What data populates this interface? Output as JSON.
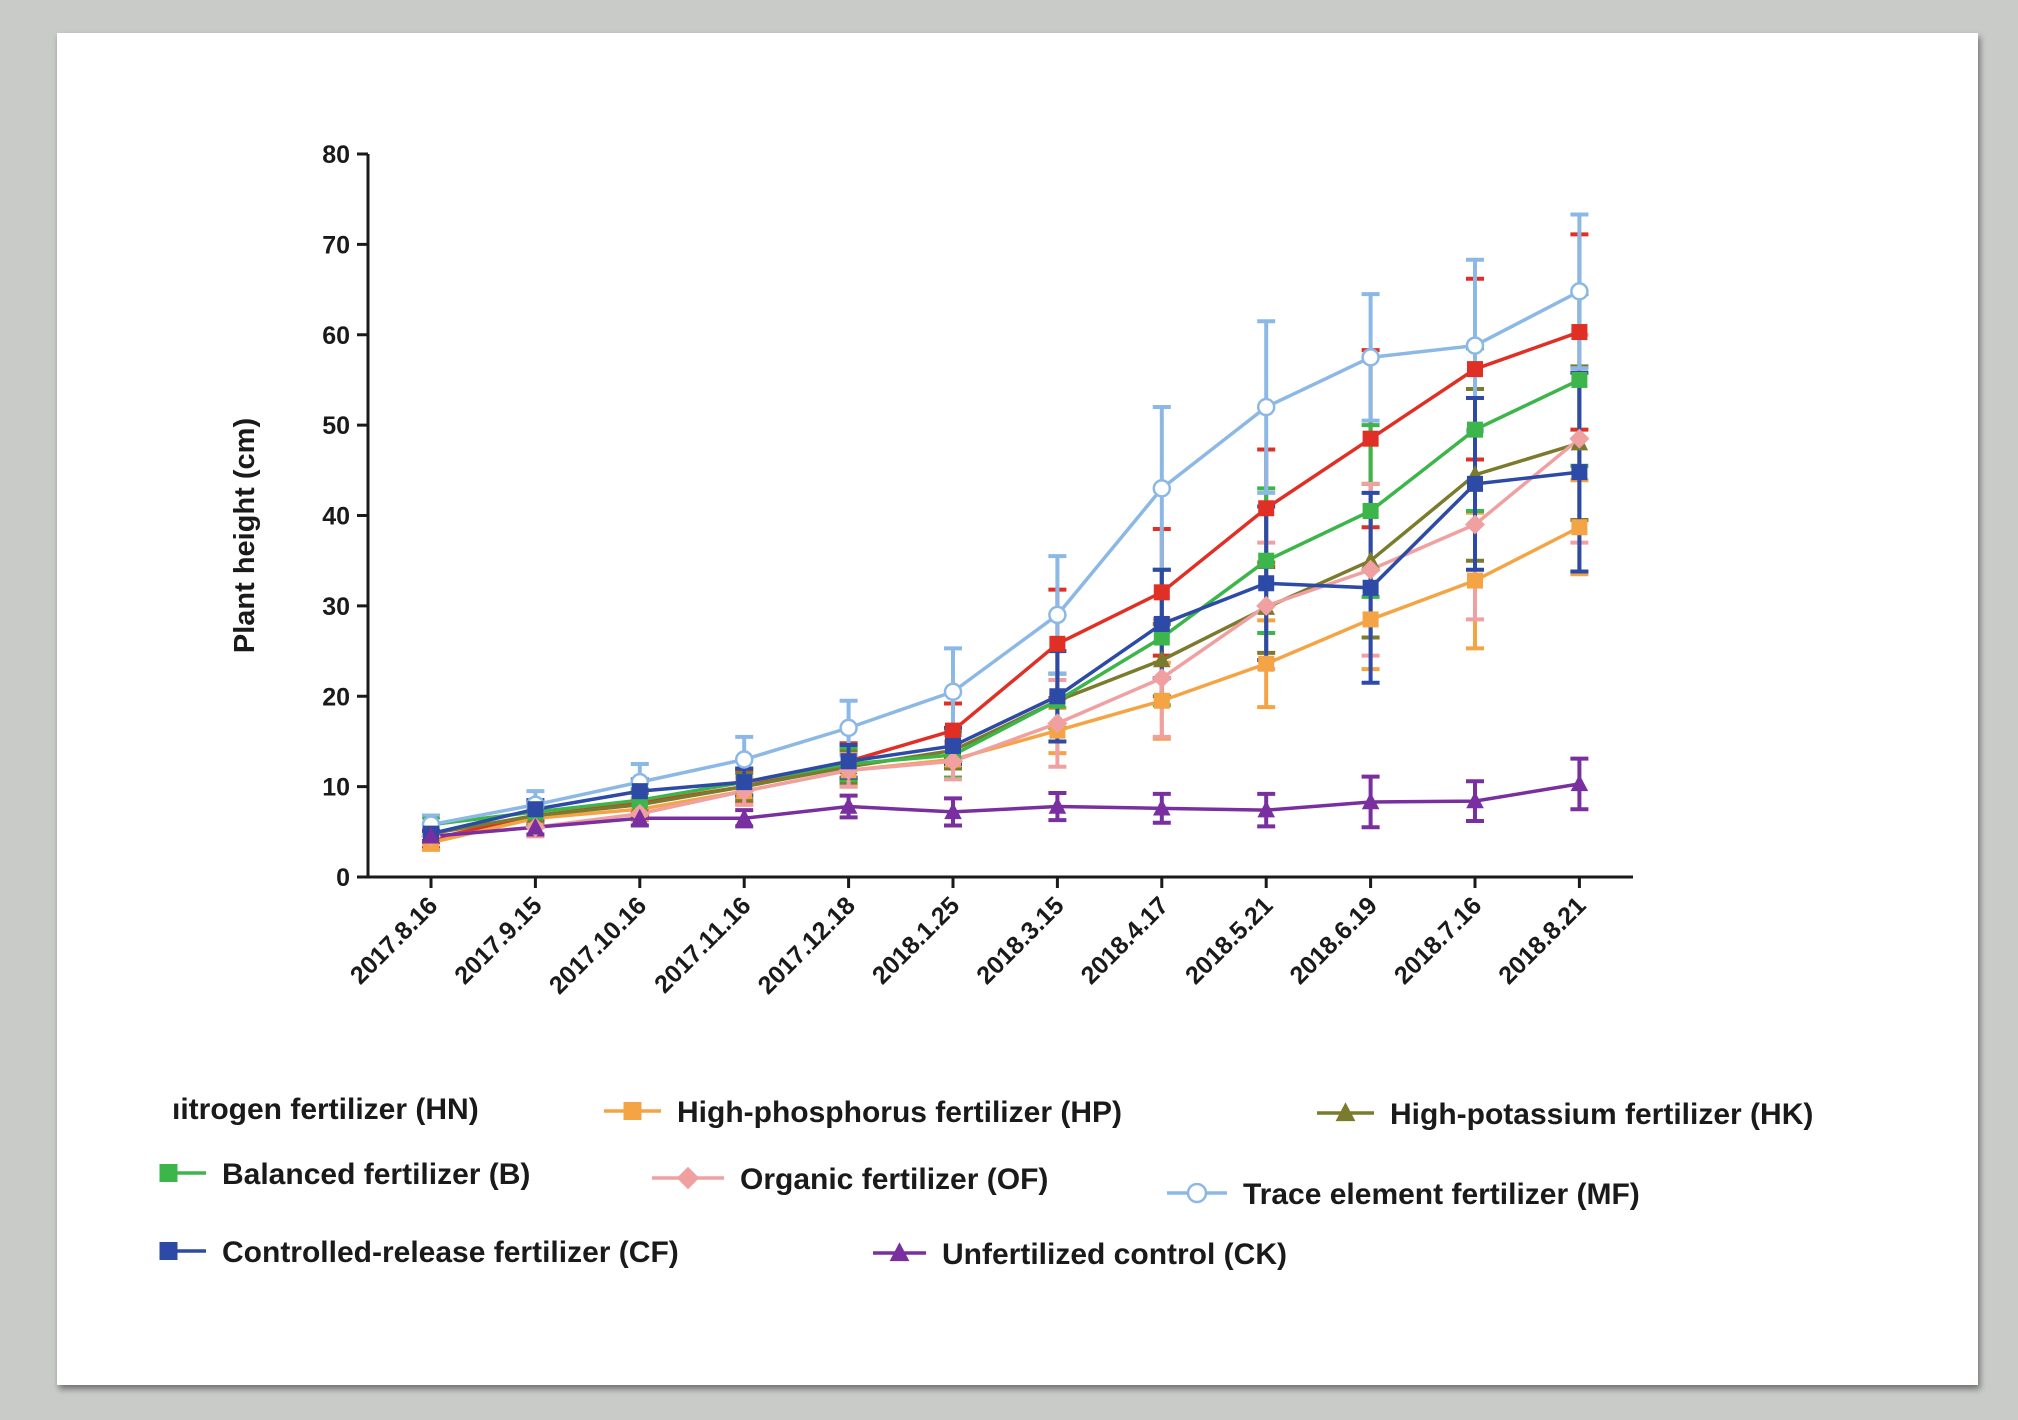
{
  "chart_data": {
    "type": "line",
    "ylabel": "Plant height (cm)",
    "xlabel": "",
    "ylim": [
      0,
      80
    ],
    "yticks": [
      0,
      10,
      20,
      30,
      40,
      50,
      60,
      70,
      80
    ],
    "categories": [
      "2017.8.16",
      "2017.9.15",
      "2017.10.16",
      "2017.11.16",
      "2017.12.18",
      "2018.1.25",
      "2018.3.15",
      "2018.4.17",
      "2018.5.21",
      "2018.6.19",
      "2018.7.16",
      "2018.8.21"
    ],
    "grid": false,
    "legend_position": "bottom",
    "series": [
      {
        "name": "High-nitrogen fertilizer (HN)",
        "legend_text": "ıitrogen fertilizer (HN)",
        "color": "#e03026",
        "marker": "square",
        "values": [
          4.2,
          6.8,
          8.2,
          10.0,
          12.8,
          16.2,
          25.8,
          31.5,
          40.8,
          48.5,
          56.2,
          60.3
        ],
        "errors": [
          1.0,
          1.2,
          1.5,
          1.8,
          2.0,
          3.0,
          6.0,
          7.0,
          6.5,
          9.8,
          10.0,
          10.8
        ]
      },
      {
        "name": "High-phosphorus fertilizer (HP)",
        "legend_text": "High-phosphorus fertilizer (HP)",
        "color": "#f4a444",
        "marker": "square",
        "values": [
          3.8,
          6.5,
          7.5,
          9.5,
          11.8,
          13.0,
          16.2,
          19.5,
          23.6,
          28.5,
          32.8,
          38.7
        ],
        "errors": [
          0.8,
          1.0,
          1.2,
          1.5,
          1.8,
          2.0,
          2.5,
          4.2,
          4.8,
          5.5,
          7.5,
          5.2
        ]
      },
      {
        "name": "High-potassium fertilizer (HK)",
        "legend_text": "High-potassium fertilizer (HK)",
        "color": "#7b7b2e",
        "marker": "triangle",
        "values": [
          4.8,
          6.8,
          8.0,
          10.0,
          12.2,
          14.0,
          19.5,
          24.0,
          29.8,
          35.0,
          44.5,
          48.0
        ],
        "errors": [
          0.9,
          1.0,
          1.3,
          1.5,
          1.8,
          2.0,
          3.0,
          4.0,
          5.0,
          8.5,
          9.5,
          8.5
        ]
      },
      {
        "name": "Balanced fertilizer (B)",
        "legend_text": "Balanced fertilizer (B)",
        "color": "#3cb54a",
        "marker": "square",
        "values": [
          5.8,
          7.2,
          8.5,
          10.5,
          12.5,
          13.5,
          19.5,
          26.5,
          35.0,
          40.5,
          49.5,
          55.0
        ],
        "errors": [
          0.8,
          1.0,
          1.2,
          1.5,
          1.8,
          2.5,
          3.0,
          7.5,
          8.0,
          9.5,
          9.0,
          9.5
        ]
      },
      {
        "name": "Organic fertilizer (OF)",
        "legend_text": "Organic fertilizer (OF)",
        "color": "#f0a0a0",
        "marker": "diamond",
        "values": [
          4.5,
          5.5,
          7.0,
          9.5,
          11.8,
          12.8,
          17.0,
          22.0,
          30.0,
          34.0,
          39.0,
          48.5
        ],
        "errors": [
          0.8,
          1.0,
          1.3,
          1.5,
          1.8,
          2.0,
          4.8,
          6.5,
          7.0,
          9.5,
          10.5,
          11.5
        ]
      },
      {
        "name": "Trace element fertilizer (MF)",
        "legend_text": "Trace element fertilizer (MF)",
        "color": "#8cb8e6",
        "marker": "circle-open",
        "values": [
          5.8,
          8.0,
          10.5,
          13.0,
          16.5,
          20.5,
          29.0,
          43.0,
          52.0,
          57.5,
          58.8,
          64.8
        ],
        "errors": [
          1.0,
          1.5,
          2.0,
          2.5,
          3.0,
          4.8,
          6.5,
          9.0,
          9.5,
          7.0,
          9.5,
          8.5
        ]
      },
      {
        "name": "Controlled-release fertilizer (CF)",
        "legend_text": "Controlled-release fertilizer (CF)",
        "color": "#2c4aa6",
        "marker": "square",
        "values": [
          4.8,
          7.5,
          9.5,
          10.5,
          12.8,
          14.5,
          20.0,
          28.0,
          32.5,
          32.0,
          43.5,
          44.8
        ],
        "errors": [
          0.8,
          1.0,
          1.3,
          1.5,
          1.8,
          2.0,
          5.0,
          6.0,
          8.5,
          10.5,
          9.5,
          11.0
        ]
      },
      {
        "name": "Unfertilized control (CK)",
        "legend_text": "Unfertilized control (CK)",
        "color": "#7a2fa0",
        "marker": "triangle",
        "values": [
          4.5,
          5.5,
          6.5,
          6.5,
          7.8,
          7.2,
          7.8,
          7.6,
          7.4,
          8.3,
          8.4,
          10.3
        ],
        "errors": [
          0.6,
          0.8,
          0.8,
          0.9,
          1.2,
          1.5,
          1.5,
          1.6,
          1.8,
          2.8,
          2.2,
          2.8
        ]
      }
    ]
  }
}
